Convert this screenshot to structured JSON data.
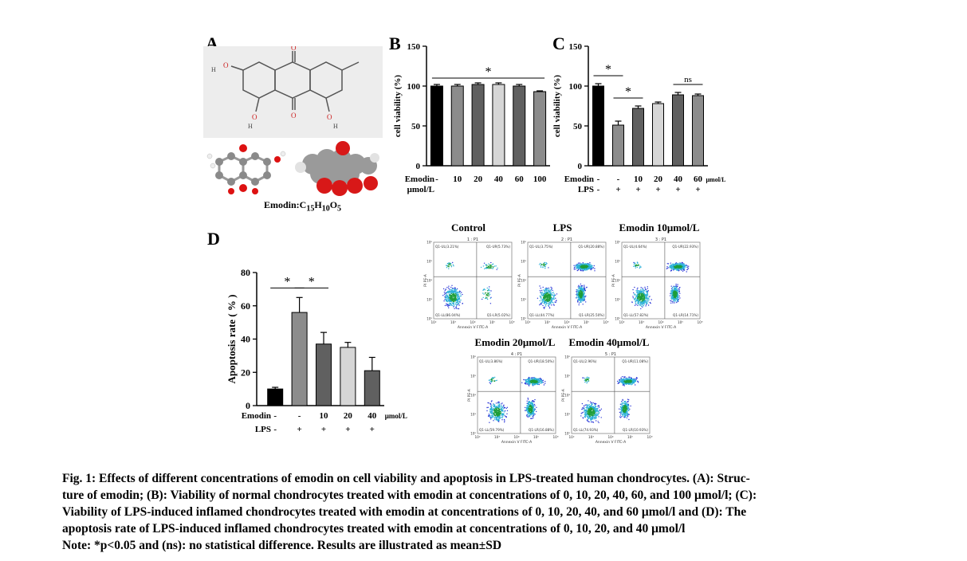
{
  "panels": {
    "a": "A",
    "b": "B",
    "c": "C",
    "d": "D"
  },
  "structure": {
    "formula_prefix": "Emodin:C",
    "formula_c": "15",
    "formula_h": "H",
    "formula_h_sub": "10",
    "formula_o": "O",
    "formula_o_sub": "5",
    "atom_h": "H",
    "atom_o": "O"
  },
  "colors": {
    "black": "#000000",
    "gray_dark": "#606060",
    "gray_mid": "#8c8c8c",
    "gray_light": "#d6d6d6",
    "gray_mid2": "#a8a8a8"
  },
  "chart_data": [
    {
      "id": "B",
      "type": "bar",
      "ylabel": "cell viability (%)",
      "ylim": [
        0,
        150
      ],
      "yticks": [
        "0",
        "50",
        "100",
        "150"
      ],
      "row_labels": [
        "Emodin",
        "μmol/L"
      ],
      "categories": [
        "-",
        "10",
        "20",
        "40",
        "60",
        "100"
      ],
      "values": [
        100,
        100,
        102,
        102,
        100,
        93
      ],
      "errors": [
        2,
        2,
        2,
        2,
        2,
        1
      ],
      "fills": [
        "#000000",
        "#8c8c8c",
        "#606060",
        "#d6d6d6",
        "#606060",
        "#8c8c8c"
      ],
      "annotations": [
        {
          "text": "*",
          "from": 0,
          "to": 5
        }
      ]
    },
    {
      "id": "C",
      "type": "bar",
      "ylabel": "cell viability (%)",
      "ylim": [
        0,
        150
      ],
      "yticks": [
        "0",
        "50",
        "100",
        "150"
      ],
      "row_labels": [
        "Emodin",
        "LPS"
      ],
      "unit": "μmol/L",
      "categories": [
        "-",
        "-",
        "10",
        "20",
        "40",
        "60"
      ],
      "lps": [
        "-",
        "+",
        "+",
        "+",
        "+",
        "+"
      ],
      "values": [
        100,
        51,
        72,
        78,
        89,
        88
      ],
      "errors": [
        3,
        5,
        3,
        2,
        3,
        2
      ],
      "fills": [
        "#000000",
        "#8c8c8c",
        "#606060",
        "#d6d6d6",
        "#606060",
        "#8c8c8c"
      ],
      "annotations": [
        {
          "text": "*",
          "from": 0,
          "to": 1
        },
        {
          "text": "*",
          "from": 1,
          "to": 2
        },
        {
          "text": "ns",
          "from": 4,
          "to": 5
        }
      ]
    },
    {
      "id": "D",
      "type": "bar",
      "ylabel": "Apoptosis rate ( % )",
      "ylim": [
        0,
        80
      ],
      "yticks": [
        "0",
        "20",
        "40",
        "60",
        "80"
      ],
      "row_labels": [
        "Emodin",
        "LPS"
      ],
      "unit": "μmol/L",
      "categories": [
        "-",
        "-",
        "10",
        "20",
        "40"
      ],
      "lps": [
        "-",
        "+",
        "+",
        "+",
        "+"
      ],
      "values": [
        10,
        56,
        37,
        35,
        21
      ],
      "errors": [
        1,
        9,
        7,
        3,
        8
      ],
      "fills": [
        "#000000",
        "#8c8c8c",
        "#606060",
        "#d6d6d6",
        "#606060"
      ],
      "annotations": [
        {
          "text": "*",
          "from": 0,
          "to": 1
        },
        {
          "text": "*",
          "from": 1,
          "to": 2
        }
      ]
    }
  ],
  "flow": {
    "plots": [
      {
        "title": "Control",
        "header": "1 : P1",
        "ul": "Q1-UL(3.21%)",
        "ur": "Q1-UR(5.73%)",
        "ll": "Q1-LL(86.04%)",
        "lr": "Q1-LR(5.02%)"
      },
      {
        "title": "LPS",
        "header": "2 : P1",
        "ul": "Q1-UL(3.75%)",
        "ur": "Q1-UR(20.88%)",
        "ll": "Q1-LL(44.77%)",
        "lr": "Q1-LR(25.50%)"
      },
      {
        "title": "Emodin 10μmol/L",
        "header": "3 : P1",
        "ul": "Q1-UL(4.64%)",
        "ur": "Q1-UR(22.93%)",
        "ll": "Q1-LL(57.82%)",
        "lr": "Q1-LR(14.71%)"
      },
      {
        "title": "Emodin 20μmol/L",
        "header": "4 : P1",
        "ul": "Q1-UL(3.86%)",
        "ur": "Q1-UR(18.50%)",
        "ll": "Q1-LL(59.79%)",
        "lr": "Q1-LR(16.88%)"
      },
      {
        "title": "Emodin 40μmol/L",
        "header": "5 : P1",
        "ul": "Q1-UL(2.96%)",
        "ur": "Q1-UR(11.08%)",
        "ll": "Q1-LL(74.93%)",
        "lr": "Q1-LR(10.93%)"
      }
    ],
    "xaxis": "Annexin V FITC-A",
    "yaxis": "PI PE-A",
    "ticks": [
      "10²",
      "10³",
      "10⁴",
      "10⁵",
      "10⁶"
    ]
  },
  "caption": {
    "line1": "Fig. 1: Effects of different concentrations of emodin on cell viability and apoptosis in LPS-treated human chondrocytes. (A): Struc-",
    "line2": "ture of emodin; (B): Viability of normal chondrocytes treated with emodin at concentrations of 0, 10, 20, 40, 60, and 100 μmol/l; (C):",
    "line3": "Viability of LPS-induced inflamed chondrocytes treated with emodin at concentrations of 0, 10, 20, 40, and 60 μmol/l and (D): The",
    "line4": "apoptosis rate of LPS-induced inflamed chondrocytes treated with emodin at concentrations of 0, 10, 20, and 40 μmol/l",
    "line5": "Note: *p<0.05 and (ns): no statistical difference. Results are illustrated as mean±SD"
  }
}
